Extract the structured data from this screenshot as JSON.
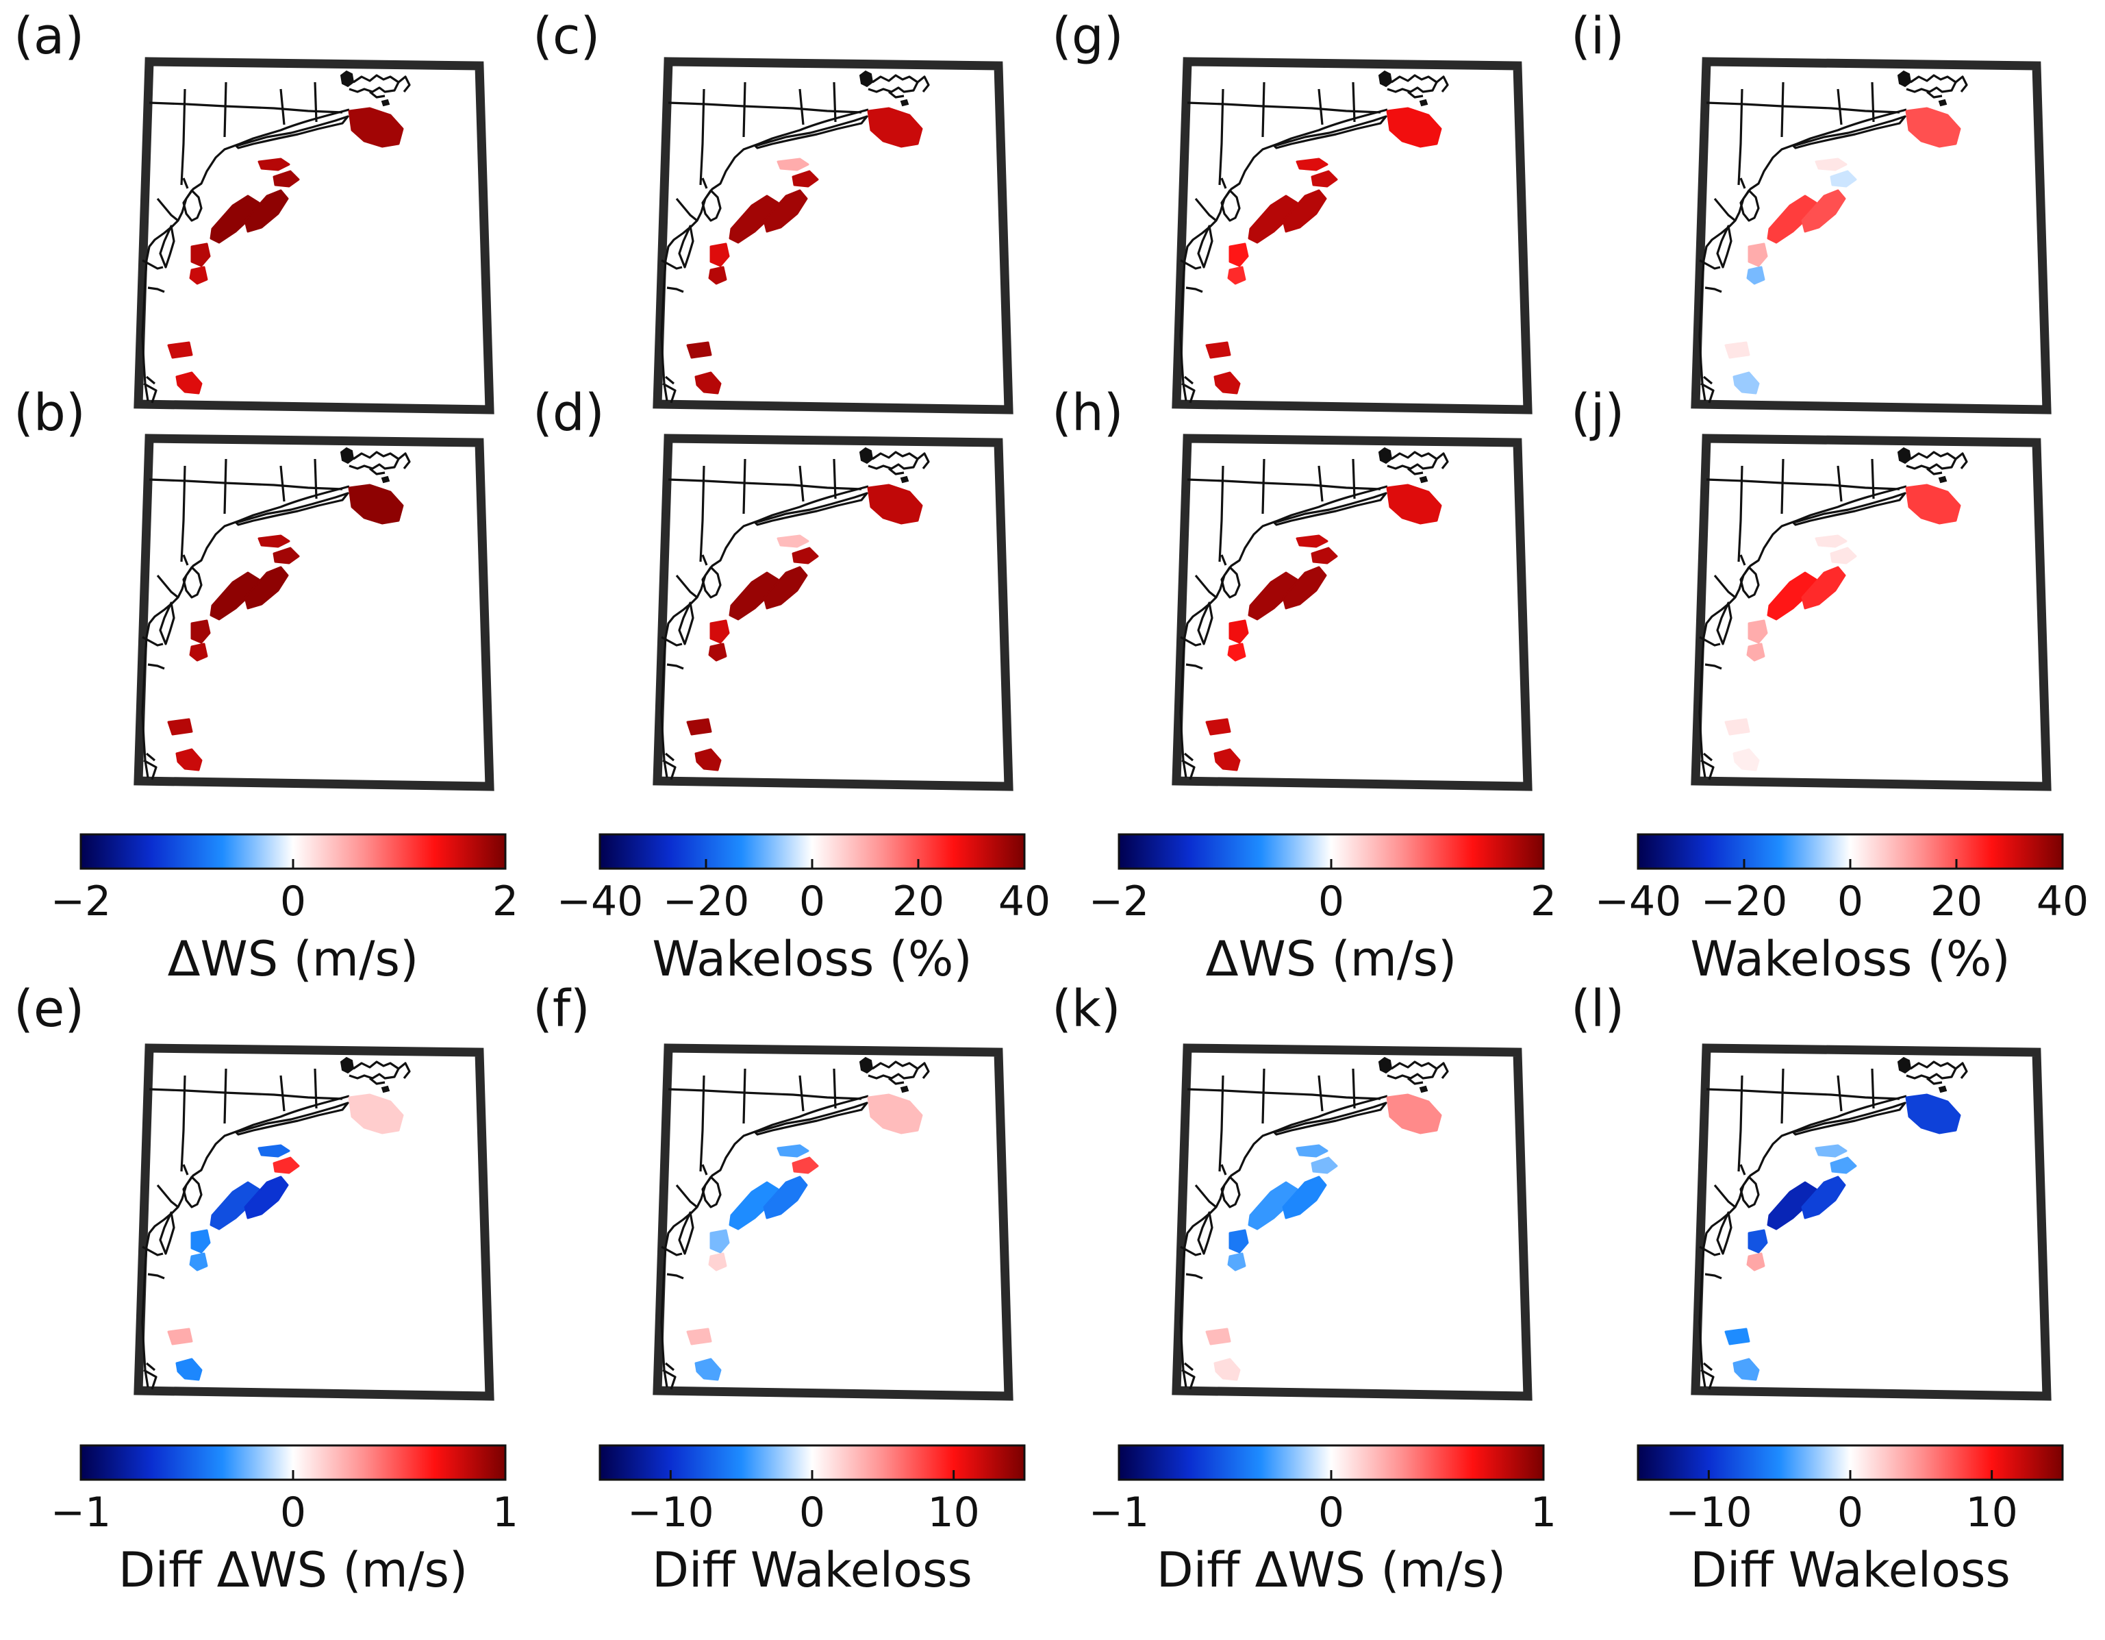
{
  "figure": {
    "panels": [
      {
        "label": "(a)",
        "scheme": "a"
      },
      {
        "label": "(b)",
        "scheme": "a"
      },
      {
        "label": "(c)",
        "scheme": "a"
      },
      {
        "label": "(d)",
        "scheme": "a"
      },
      {
        "label": "(g)",
        "scheme": "g"
      },
      {
        "label": "(h)",
        "scheme": "a"
      },
      {
        "label": "(i)",
        "scheme": "i"
      },
      {
        "label": "(j)",
        "scheme": "j"
      },
      {
        "label": "(e)",
        "scheme": "e"
      },
      {
        "label": "(f)",
        "scheme": "f"
      },
      {
        "label": "(k)",
        "scheme": "k"
      },
      {
        "label": "(l)",
        "scheme": "l"
      }
    ],
    "colorbars": [
      {
        "title": "ΔWS (m/s)",
        "vmin": -2,
        "vmax": 2,
        "ticks": [
          "−2",
          "0",
          "2"
        ]
      },
      {
        "title": "Wakeloss (%)",
        "vmin": -40,
        "vmax": 40,
        "ticks": [
          "−40",
          "−20",
          "0",
          "20",
          "40"
        ]
      },
      {
        "title": "ΔWS (m/s)",
        "vmin": -2,
        "vmax": 2,
        "ticks": [
          "−2",
          "0",
          "2"
        ]
      },
      {
        "title": "Wakeloss (%)",
        "vmin": -40,
        "vmax": 40,
        "ticks": [
          "−40",
          "−20",
          "0",
          "20",
          "40"
        ]
      },
      {
        "title": "Diff ΔWS (m/s)",
        "vmin": -1,
        "vmax": 1,
        "ticks": [
          "−1",
          "0",
          "1"
        ]
      },
      {
        "title": "Diff Wakeloss",
        "vmin": -15,
        "vmax": 15,
        "ticks": [
          "−10",
          "0",
          "10"
        ]
      },
      {
        "title": "Diff ΔWS (m/s)",
        "vmin": -1,
        "vmax": 1,
        "ticks": [
          "−1",
          "0",
          "1"
        ]
      },
      {
        "title": "Diff Wakeloss",
        "vmin": -15,
        "vmax": 15,
        "ticks": [
          "−10",
          "0",
          "10"
        ]
      }
    ],
    "colors": {
      "cmap": [
        "#000050",
        "#0a2ed0",
        "#1e8cff",
        "#ffffff",
        "#ff9090",
        "#ff1010",
        "#7a0000"
      ],
      "frame": "#2a2a2a",
      "coast": "#111111"
    }
  },
  "chart_data": {
    "type": "heatmap",
    "description_units": "Colour-coded offshore wind-farm areas on regional maps of the US East Coast",
    "wind_farm_areas": [
      "cape_cod_south",
      "ri_ma_small",
      "ri_ma_east",
      "ny_nj_main",
      "ny_nj_east",
      "delaware",
      "maryland",
      "virginia",
      "nc_south"
    ],
    "panel_values": {
      "a": {
        "units": "m/s",
        "values": [
          1.8,
          1.7,
          1.8,
          1.9,
          1.9,
          1.7,
          1.6,
          1.6,
          1.5
        ]
      },
      "b": {
        "units": "m/s",
        "values": [
          1.9,
          1.7,
          1.8,
          1.9,
          1.9,
          1.8,
          1.7,
          1.7,
          1.6
        ]
      },
      "c": {
        "units": "%",
        "values": [
          32,
          10,
          34,
          36,
          36,
          30,
          34,
          36,
          34
        ]
      },
      "d": {
        "units": "%",
        "values": [
          33,
          8,
          35,
          37,
          37,
          31,
          35,
          36,
          35
        ]
      },
      "g": {
        "units": "m/s",
        "values": [
          1.4,
          1.5,
          1.6,
          1.7,
          1.7,
          1.3,
          1.2,
          1.6,
          1.6
        ]
      },
      "h": {
        "units": "m/s",
        "values": [
          1.5,
          1.6,
          1.7,
          1.8,
          1.8,
          1.4,
          1.3,
          1.6,
          1.6
        ]
      },
      "i": {
        "units": "%",
        "values": [
          20,
          3,
          -3,
          22,
          20,
          10,
          -8,
          3,
          -6
        ]
      },
      "j": {
        "units": "%",
        "values": [
          22,
          3,
          3,
          26,
          24,
          10,
          10,
          3,
          2
        ]
      },
      "e": {
        "units": "m/s",
        "values": [
          0.15,
          -0.45,
          0.6,
          -0.55,
          -0.65,
          -0.35,
          -0.3,
          0.25,
          -0.35
        ]
      },
      "f": {
        "units": "%",
        "values": [
          3,
          -4,
          8,
          -5,
          -6,
          -3,
          2,
          3,
          -4
        ]
      },
      "k": {
        "units": "m/s",
        "values": [
          0.35,
          -0.25,
          -0.2,
          -0.3,
          -0.35,
          -0.4,
          -0.25,
          0.2,
          0.1
        ]
      },
      "l": {
        "units": "%",
        "values": [
          -9,
          -3,
          -4,
          -11,
          -9,
          -8,
          4,
          -5,
          -4
        ]
      }
    }
  }
}
